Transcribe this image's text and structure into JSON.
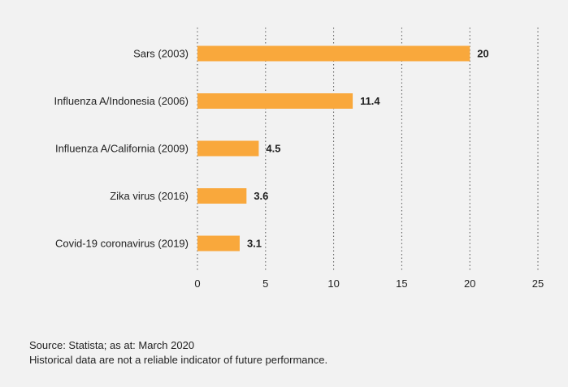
{
  "chart_data": {
    "type": "bar",
    "orientation": "horizontal",
    "categories": [
      "Sars (2003)",
      "Influenza A/Indonesia (2006)",
      "Influenza A/California (2009)",
      "Zika virus (2016)",
      "Covid-19 coronavirus (2019)"
    ],
    "values": [
      20,
      11.4,
      4.5,
      3.6,
      3.1
    ],
    "value_labels": [
      "20",
      "11.4",
      "4.5",
      "3.6",
      "3.1"
    ],
    "xlim": [
      0,
      25
    ],
    "xticks": [
      "0",
      "5",
      "10",
      "15",
      "20",
      "25"
    ],
    "grid": "vertical dotted",
    "bar_color": "#f9a83c"
  },
  "footer": {
    "source": "Source: Statista; as at: March 2020",
    "disclaimer": "Historical data are not a reliable indicator of future performance."
  }
}
